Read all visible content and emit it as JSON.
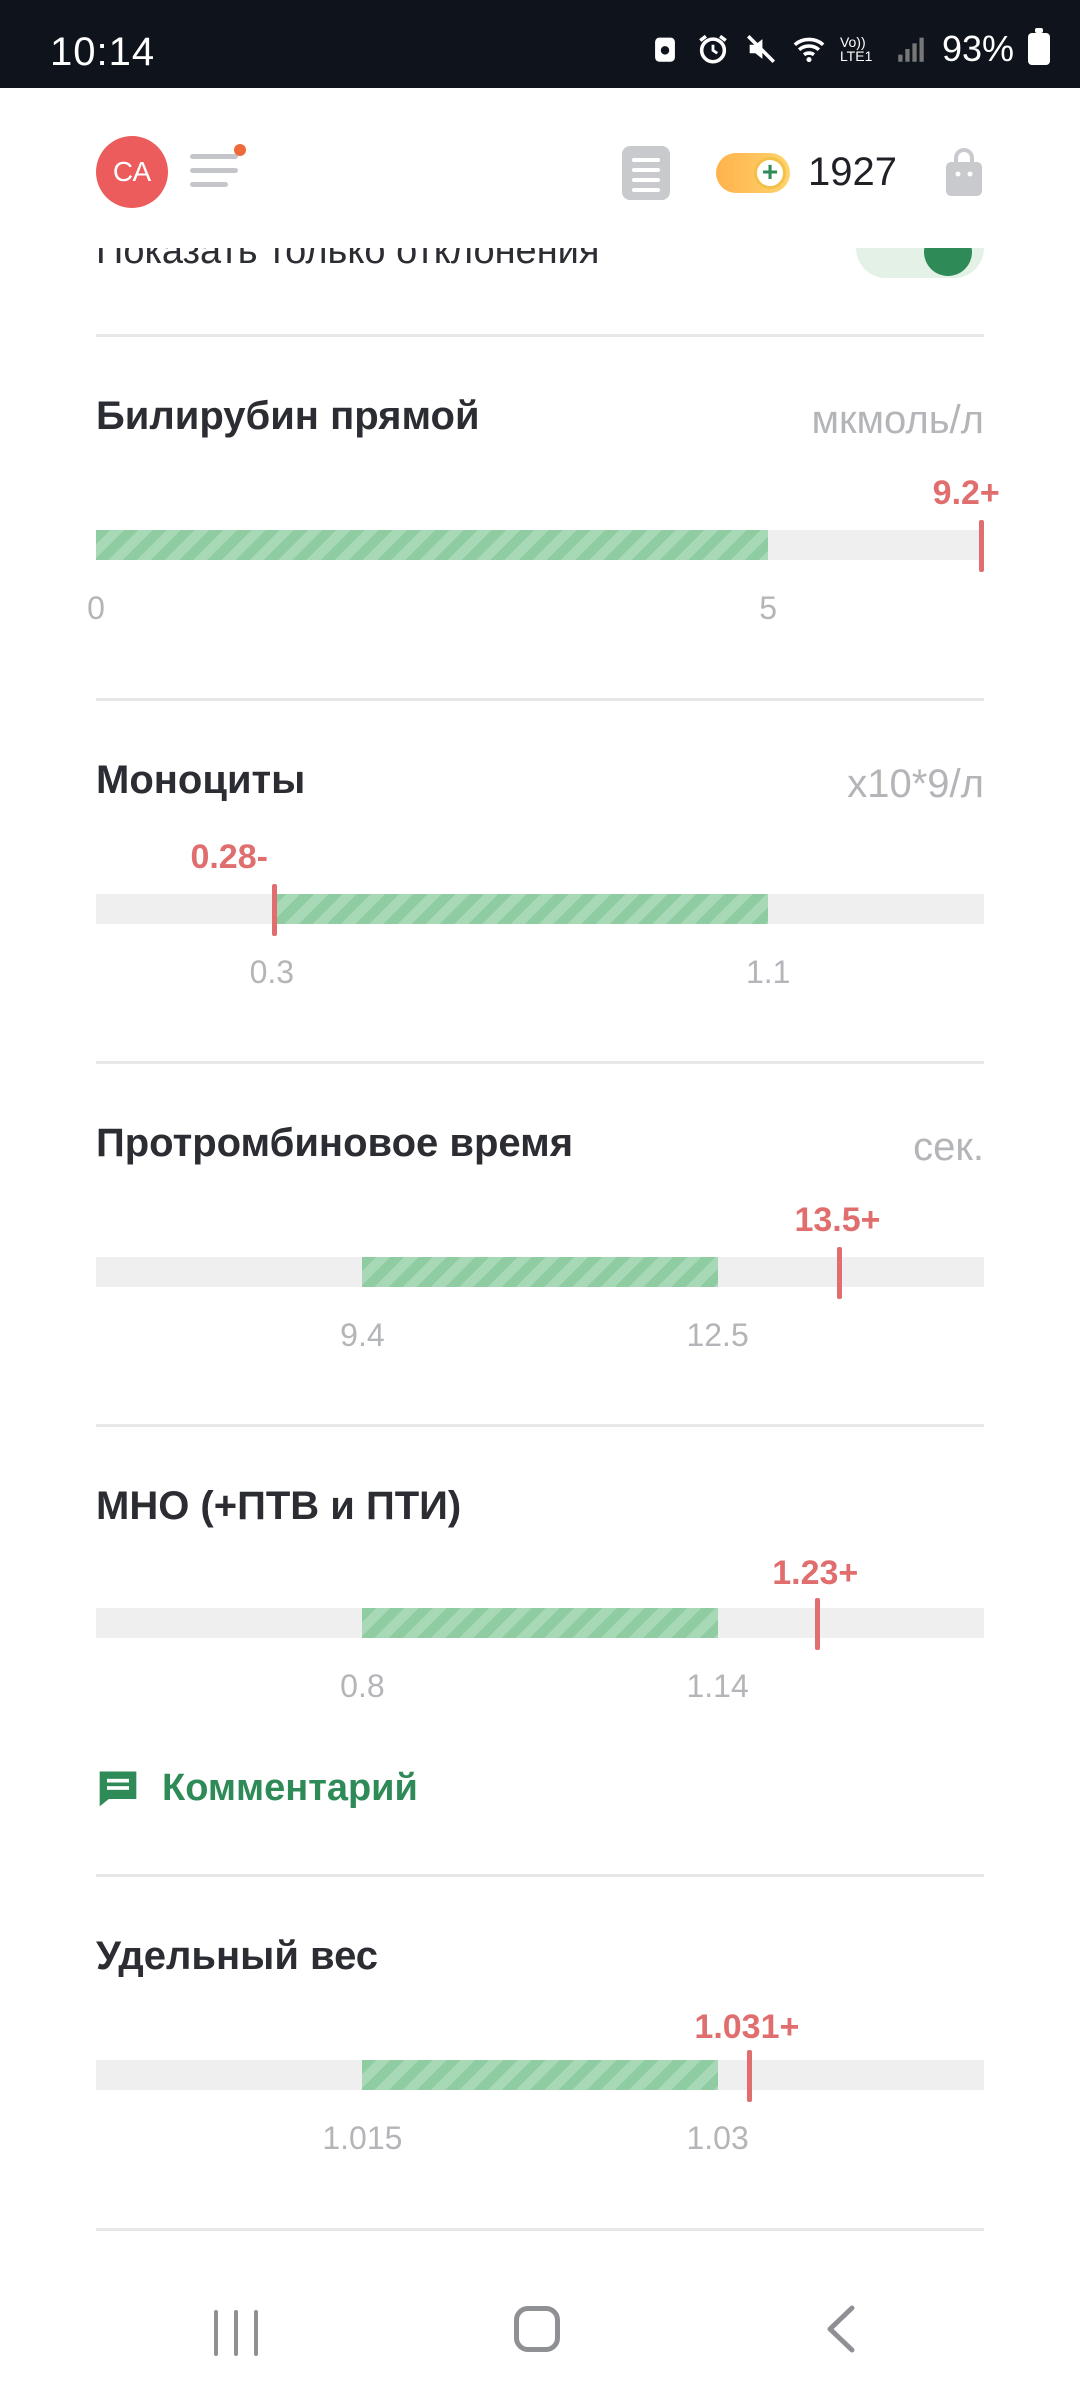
{
  "status_bar": {
    "time": "10:14",
    "battery": "93%",
    "network": "Vo)) LTE1"
  },
  "header": {
    "avatar_initials": "СА",
    "coins": "1927"
  },
  "filter": {
    "label": "Показать только отклонения",
    "enabled": true
  },
  "metrics": [
    {
      "title": "Билирубин прямой",
      "unit": "мкмоль/л",
      "value_label": "9.2+",
      "value": 9.2,
      "norm_min": 0,
      "norm_max": 5,
      "min_label": "0",
      "max_label": "5",
      "status": "high"
    },
    {
      "title": "Моноциты",
      "unit": "x10*9/л",
      "value_label": "0.28-",
      "value": 0.28,
      "norm_min": 0.3,
      "norm_max": 1.1,
      "min_label": "0.3",
      "max_label": "1.1",
      "status": "low"
    },
    {
      "title": "Протромбиновое время",
      "unit": "сек.",
      "value_label": "13.5+",
      "value": 13.5,
      "norm_min": 9.4,
      "norm_max": 12.5,
      "min_label": "9.4",
      "max_label": "12.5",
      "status": "high"
    },
    {
      "title": "МНО (+ПТВ и ПТИ)",
      "unit": "",
      "value_label": "1.23+",
      "value": 1.23,
      "norm_min": 0.8,
      "norm_max": 1.14,
      "min_label": "0.8",
      "max_label": "1.14",
      "status": "high"
    },
    {
      "title": "Удельный вес",
      "unit": "",
      "value_label": "1.031+",
      "value": 1.031,
      "norm_min": 1.015,
      "norm_max": 1.03,
      "min_label": "1.015",
      "max_label": "1.03",
      "status": "high"
    }
  ],
  "comment": {
    "label": "Комментарий"
  },
  "colors": {
    "accent_green": "#2e8b57",
    "deviation_red": "#e06e6e",
    "norm_bar": "#8fcca2",
    "track": "#efefef"
  }
}
